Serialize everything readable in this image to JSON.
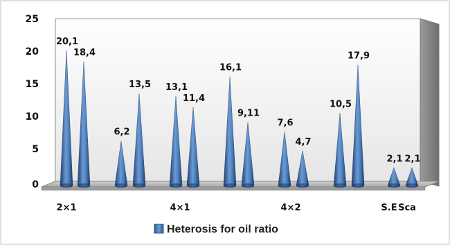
{
  "chart_data": {
    "type": "bar",
    "bar_shape": "cone",
    "categories": [
      "2×1",
      "",
      "",
      "",
      "4×1",
      "",
      "",
      "",
      "4×2",
      "",
      "",
      "",
      "S.E",
      "Sca"
    ],
    "series": [
      {
        "name": "Heterosis for oil ratio",
        "values": [
          20.1,
          18.4,
          6.2,
          13.5,
          13.1,
          11.4,
          16.1,
          9.11,
          7.6,
          4.7,
          10.5,
          17.9,
          2.1,
          2.1
        ],
        "labels": [
          "20,1",
          "18,4",
          "6,2",
          "13,5",
          "13,1",
          "11,4",
          "16,1",
          "9,11",
          "7,6",
          "4,7",
          "10,5",
          "17,9",
          "2,1",
          "2,1"
        ]
      }
    ],
    "ylim": [
      0,
      25
    ],
    "yticks": [
      "0",
      "5",
      "10",
      "15",
      "20",
      "25"
    ],
    "grid": false,
    "legend": "bottom",
    "colors": {
      "bar": "#4a7ebb",
      "bar_dark": "#1f3f6e",
      "wall": "#d9d9d9",
      "floor": "#bfbfbf"
    }
  }
}
